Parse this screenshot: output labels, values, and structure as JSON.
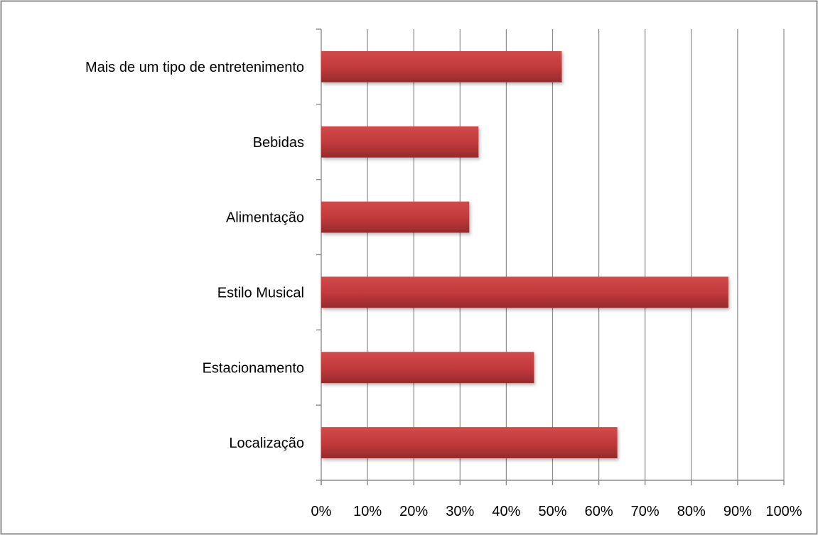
{
  "chart_data": {
    "type": "bar",
    "orientation": "horizontal",
    "title": "",
    "xlabel": "",
    "ylabel": "",
    "categories": [
      "Mais de um tipo de entretenimento",
      "Bebidas",
      "Alimentação",
      "Estilo Musical",
      "Estacionamento",
      "Localização"
    ],
    "values": [
      52,
      34,
      32,
      88,
      46,
      64
    ],
    "value_unit": "%",
    "xlim": [
      0,
      100
    ],
    "x_ticks": [
      0,
      10,
      20,
      30,
      40,
      50,
      60,
      70,
      80,
      90,
      100
    ],
    "x_tick_labels": [
      "0%",
      "10%",
      "20%",
      "30%",
      "40%",
      "50%",
      "60%",
      "70%",
      "80%",
      "90%",
      "100%"
    ],
    "grid": "vertical",
    "legend": "none",
    "bar_color": "#c0393b"
  }
}
